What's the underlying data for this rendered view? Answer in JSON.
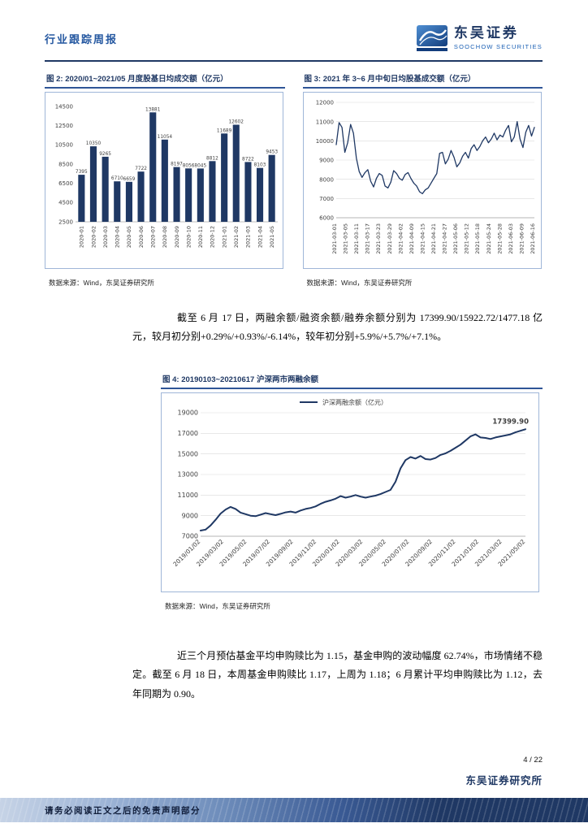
{
  "page": {
    "accent_navy": "#1f3864",
    "accent_blue": "#1a5fb4",
    "background": "#ffffff"
  },
  "header": {
    "report_type": "行业跟踪周报",
    "company_cn": "东吴证券",
    "company_en": "SOOCHOW SECURITIES"
  },
  "common": {
    "source_note": "数据来源：Wind，东吴证券研究所"
  },
  "paragraphs": {
    "p1": "截至 6 月 17 日，两融余额/融资余额/融券余额分别为 17399.90/15922.72/1477.18 亿元，较月初分别+0.29%/+0.93%/-6.14%，较年初分别+5.9%/+5.7%/+7.1%。",
    "p2": "近三个月预估基金平均申购赎比为 1.15，基金申购的波动幅度 62.74%，市场情绪不稳定。截至 6 月 18 日，本周基金申购赎比 1.17，上周为 1.18；6 月累计平均申购赎比为 1.12，去年同期为 0.90。"
  },
  "footer": {
    "page_number": "4 / 22",
    "org": "东吴证券研究所",
    "disclaimer": "请务必阅读正文之后的免责声明部分"
  },
  "chart_data": [
    {
      "id": "chart2",
      "type": "bar",
      "title": "图 2: 2020/01~2021/05 月度股基日均成交额（亿元）",
      "categories": [
        "2020-01",
        "2020-02",
        "2020-03",
        "2020-04",
        "2020-05",
        "2020-06",
        "2020-07",
        "2020-08",
        "2020-09",
        "2020-10",
        "2020-11",
        "2020-12",
        "2021-01",
        "2021-02",
        "2021-03",
        "2021-04",
        "2021-05"
      ],
      "values": [
        7395,
        10350,
        9265,
        6710,
        6659,
        7722,
        13881,
        11054,
        8197,
        8056,
        8045,
        8812,
        11689,
        12602,
        8722,
        8103,
        9453
      ],
      "ylim": [
        2500,
        14500
      ],
      "ytick_step": 2000,
      "grid": false,
      "color": "#1f3864"
    },
    {
      "id": "chart3",
      "type": "line",
      "title": "图 3: 2021 年 3~6 月中旬日均股基成交额（亿元）",
      "x_labels": [
        "2021-03-01",
        "2021-03-05",
        "2021-03-11",
        "2021-03-17",
        "2021-03-23",
        "2021-03-29",
        "2021-04-02",
        "2021-04-09",
        "2021-04-15",
        "2021-04-21",
        "2021-04-27",
        "2021-05-06",
        "2021-05-12",
        "2021-05-18",
        "2021-05-24",
        "2021-05-28",
        "2021-06-03",
        "2021-06-09",
        "2021-06-16"
      ],
      "values": [
        9800,
        10950,
        10700,
        9400,
        9900,
        10850,
        10400,
        9100,
        8400,
        8100,
        8350,
        8500,
        7900,
        7600,
        8050,
        8300,
        8200,
        7650,
        7550,
        7850,
        8450,
        8300,
        8050,
        7950,
        8250,
        8350,
        8050,
        7800,
        7650,
        7350,
        7250,
        7450,
        7550,
        7800,
        8050,
        8300,
        9350,
        9400,
        8800,
        9050,
        9500,
        9150,
        8650,
        8850,
        9200,
        9400,
        9100,
        9600,
        9800,
        9500,
        9700,
        10000,
        10200,
        9900,
        10100,
        10400,
        10050,
        10300,
        10200,
        10550,
        10800,
        9950,
        10200,
        11000,
        10100,
        9650,
        10450,
        10800,
        10250,
        10700
      ],
      "ylim": [
        6000,
        12000
      ],
      "ytick_step": 1000,
      "grid": true,
      "color": "#1f3864"
    },
    {
      "id": "chart4",
      "type": "line",
      "title": "图 4: 20190103~20210617 沪深两市两融余额",
      "legend": "沪深两融余额（亿元）",
      "annotation": "17399.90",
      "x_labels": [
        "2019/01/02",
        "2019/03/02",
        "2019/05/02",
        "2019/07/02",
        "2019/09/02",
        "2019/11/02",
        "2020/01/02",
        "2020/03/02",
        "2020/05/02",
        "2020/07/02",
        "2020/09/02",
        "2020/11/02",
        "2021/01/02",
        "2021/03/02",
        "2021/05/02"
      ],
      "values": [
        7550,
        7650,
        8050,
        8600,
        9200,
        9600,
        9850,
        9650,
        9300,
        9150,
        9000,
        8950,
        9100,
        9250,
        9150,
        9050,
        9180,
        9320,
        9400,
        9300,
        9500,
        9650,
        9750,
        9900,
        10150,
        10350,
        10480,
        10650,
        10900,
        10750,
        10850,
        11000,
        10850,
        10750,
        10850,
        10950,
        11100,
        11300,
        11500,
        12300,
        13600,
        14400,
        14700,
        14550,
        14800,
        14500,
        14450,
        14600,
        14900,
        15050,
        15300,
        15600,
        15900,
        16300,
        16700,
        16900,
        16600,
        16550,
        16450,
        16600,
        16700,
        16800,
        16900,
        17100,
        17250,
        17399.9
      ],
      "ylim": [
        7000,
        19000
      ],
      "ytick_step": 2000,
      "grid": true,
      "color": "#1f3864"
    }
  ]
}
